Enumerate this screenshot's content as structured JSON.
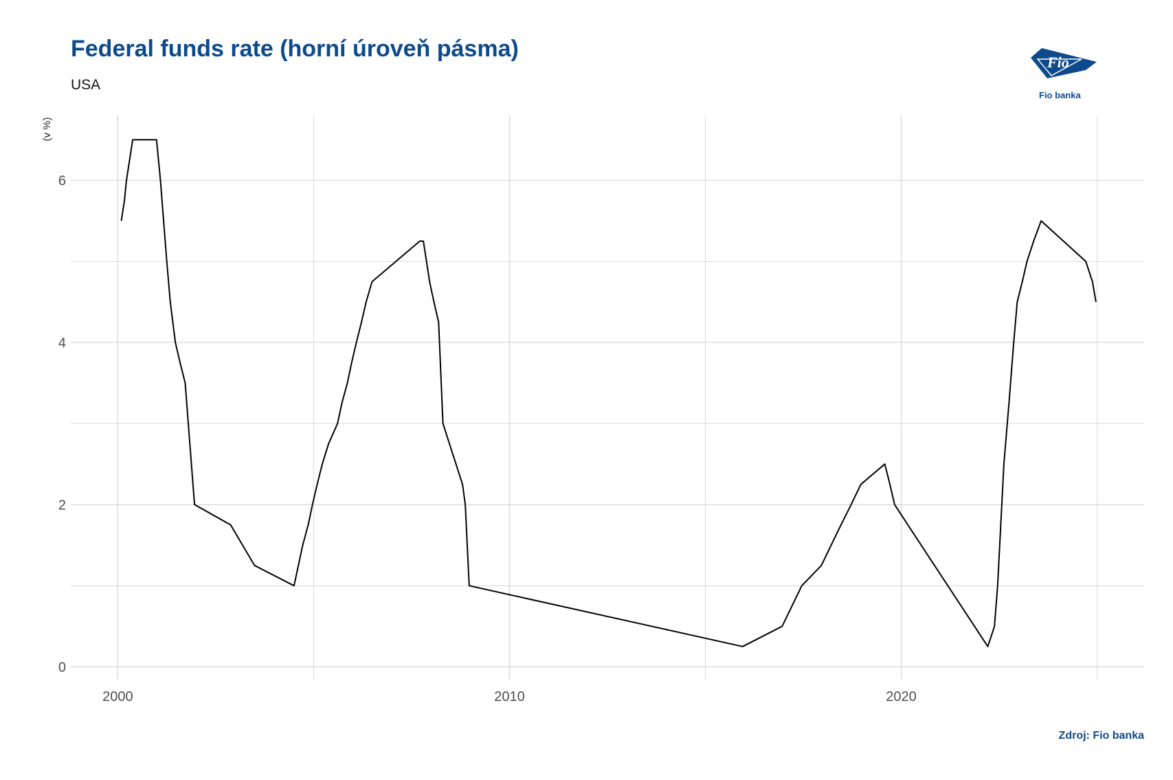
{
  "header": {
    "title": "Federal funds rate (horní úroveň pásma)",
    "subtitle": "USA"
  },
  "logo": {
    "text": "Fio",
    "caption": "Fio banka",
    "color": "#0d4a8c"
  },
  "footer": {
    "source": "Zdroj: Fio banka"
  },
  "colors": {
    "brand": "#0d4a8c",
    "line": "#000000",
    "grid": "#d9d9d9"
  },
  "chart_data": {
    "type": "line",
    "title": "Federal funds rate (horní úroveň pásma)",
    "subtitle": "USA",
    "xlabel": "",
    "ylabel": "(v %)",
    "xlim": [
      1998.8,
      2026.2
    ],
    "ylim": [
      -0.15,
      6.8
    ],
    "x_ticks": [
      2000,
      2010,
      2020
    ],
    "y_ticks": [
      0,
      2,
      4,
      6
    ],
    "grid": true,
    "legend": "none",
    "series": [
      {
        "x": [
          2000.09,
          2000.17,
          2000.22,
          2000.38,
          2000.99,
          2001.09,
          2001.17,
          2001.25,
          2001.34,
          2001.47,
          2001.59,
          2001.72,
          2001.8,
          2001.96,
          2002.88,
          2003.49,
          2004.5,
          2004.61,
          2004.72,
          2004.86,
          2004.97,
          2005.09,
          2005.22,
          2005.38,
          2005.61,
          2005.72,
          2005.86,
          2005.97,
          2006.09,
          2006.22,
          2006.34,
          2006.49,
          2007.71,
          2007.8,
          2007.96,
          2008.07,
          2008.19,
          2008.3,
          2008.8,
          2008.87,
          2008.97,
          2015.95,
          2016.96,
          2017.21,
          2017.46,
          2017.96,
          2018.21,
          2018.46,
          2018.72,
          2018.97,
          2019.58,
          2019.71,
          2019.83,
          2020.17,
          2022.21,
          2022.38,
          2022.46,
          2022.62,
          2022.75,
          2022.87,
          2022.96,
          2023.09,
          2023.21,
          2023.38,
          2023.57,
          2024.71,
          2024.88,
          2024.97
        ],
        "y": [
          5.5,
          5.75,
          6.0,
          6.5,
          6.5,
          6.0,
          5.5,
          5.0,
          4.5,
          4.0,
          3.75,
          3.5,
          3.0,
          2.0,
          1.75,
          1.25,
          1.0,
          1.25,
          1.5,
          1.75,
          2.0,
          2.25,
          2.5,
          2.75,
          3.0,
          3.25,
          3.5,
          3.75,
          4.0,
          4.25,
          4.5,
          4.75,
          5.25,
          5.25,
          4.75,
          4.5,
          4.25,
          3.0,
          2.25,
          2.0,
          1.0,
          0.25,
          0.5,
          0.75,
          1.0,
          1.25,
          1.5,
          1.75,
          2.0,
          2.25,
          2.5,
          2.25,
          2.0,
          1.75,
          0.25,
          0.5,
          1.0,
          2.5,
          3.25,
          4.0,
          4.5,
          4.75,
          5.0,
          5.25,
          5.5,
          5.0,
          4.75,
          4.5
        ]
      }
    ]
  }
}
